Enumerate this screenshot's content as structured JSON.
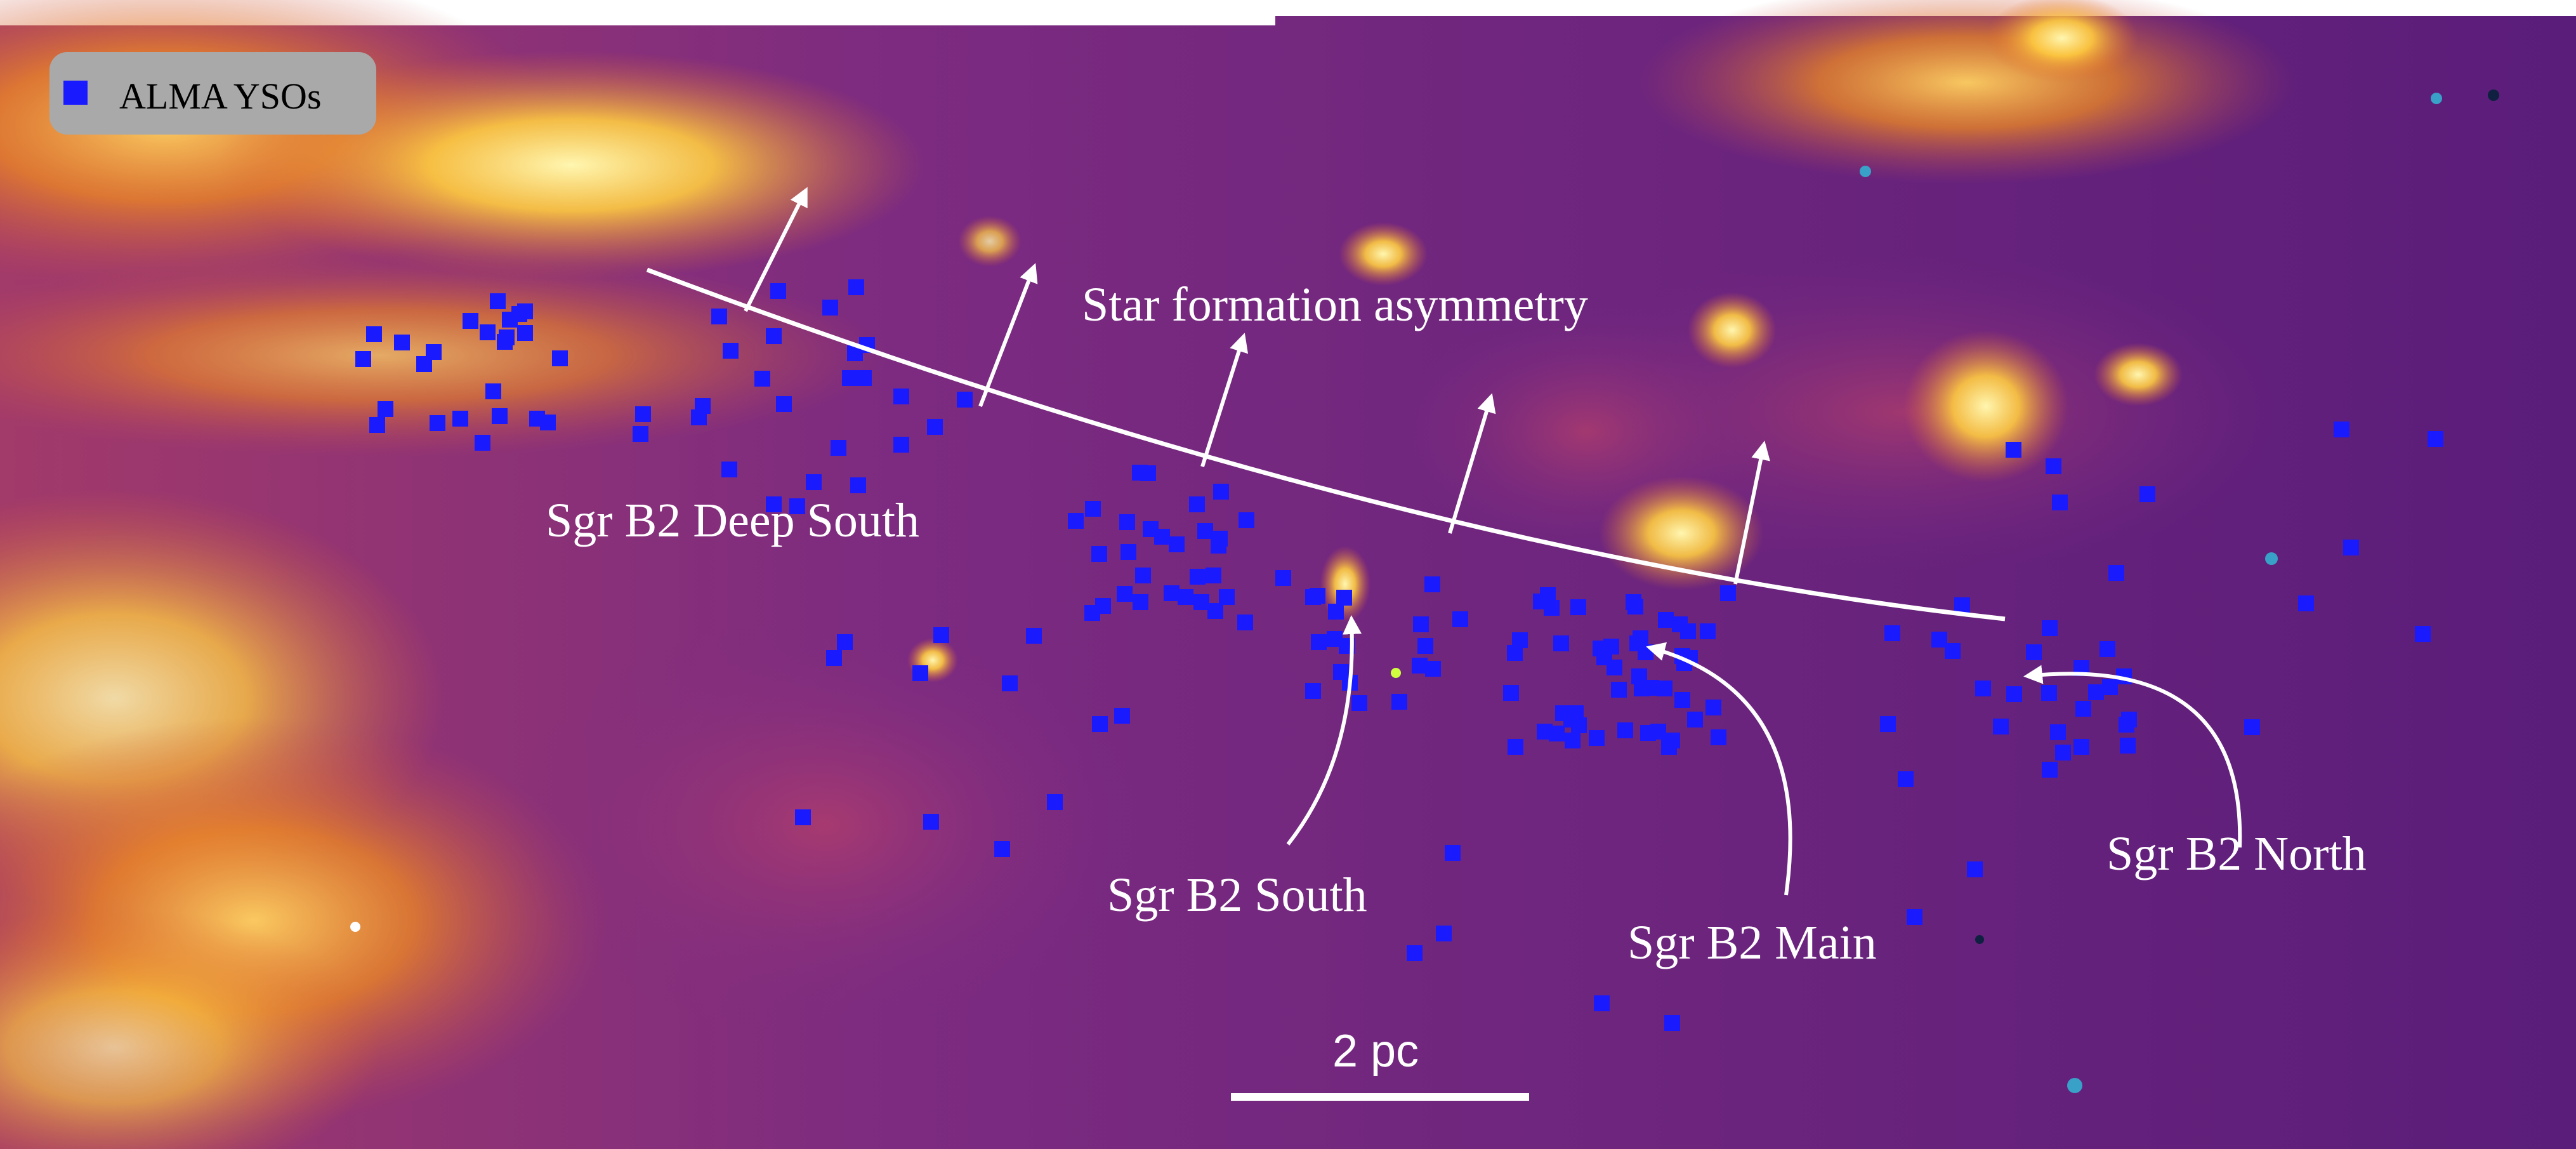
{
  "legend": {
    "marker_label": "ALMA YSOs",
    "marker_color": "#1a1aff"
  },
  "annotations": {
    "asymmetry": "Star formation asymmetry",
    "deep_south": "Sgr B2 Deep South",
    "south": "Sgr B2 South",
    "main": "Sgr B2 Main",
    "north": "Sgr B2 North"
  },
  "scale_bar": {
    "label": "2 pc"
  },
  "colors": {
    "background_dark": "#5a1d7a",
    "background_mid": "#7a2a86",
    "emission_orange": "#f08a20",
    "emission_bright": "#ffe066",
    "annotation": "#ffffff",
    "yso_marker": "#1a1aff"
  },
  "colormap": "inferno-like (purple to orange to yellow)",
  "yso_count_estimate": 190
}
